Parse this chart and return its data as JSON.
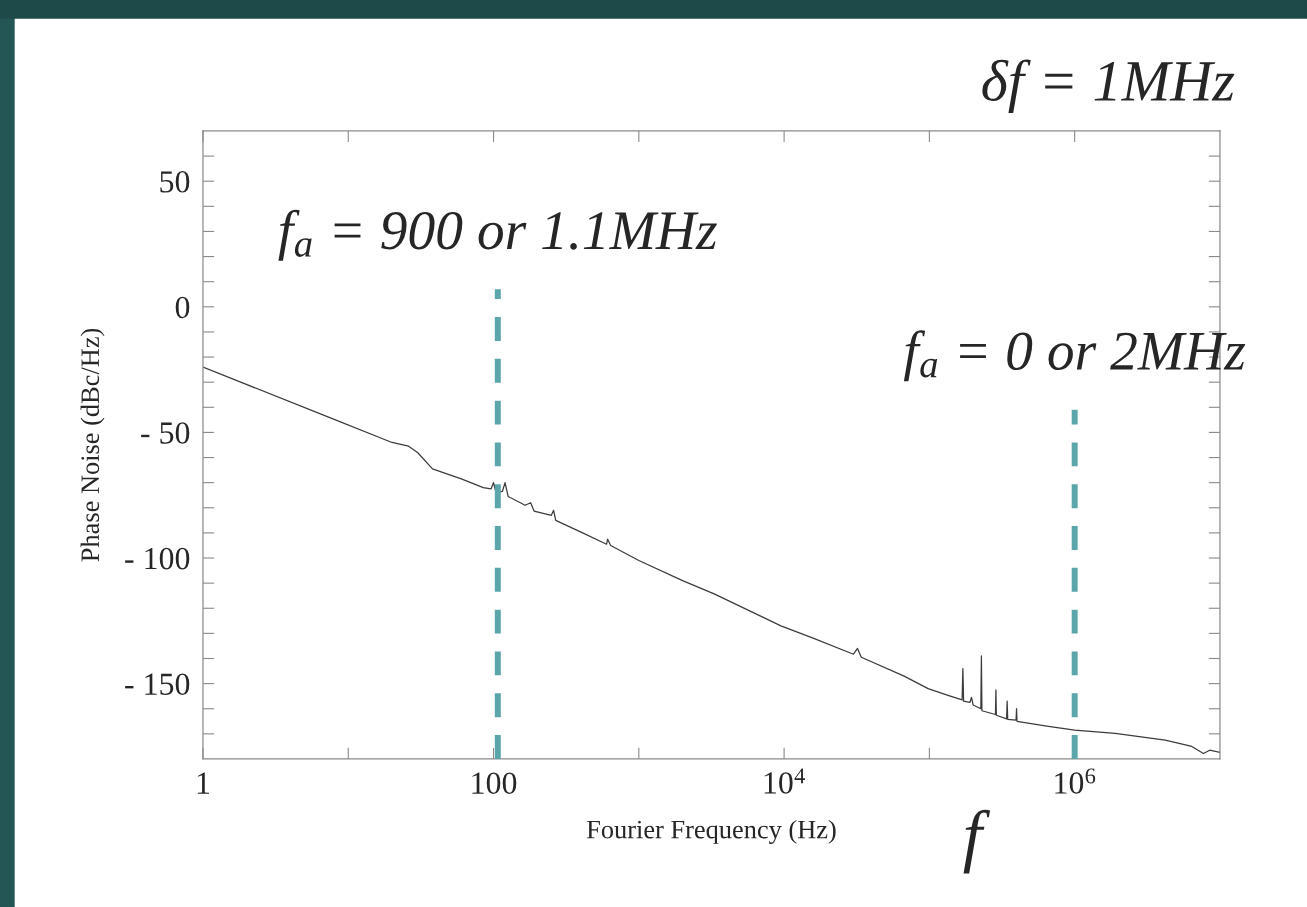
{
  "chart_data": {
    "type": "line",
    "xlabel": "Fourier Frequency (Hz)",
    "ylabel": "Phase Noise (dBc/Hz)",
    "log": "x",
    "xlim": [
      1,
      10000000
    ],
    "ylim": [
      -180,
      70
    ],
    "xticks": [
      1,
      {
        "value": 10,
        "label": null
      },
      100,
      {
        "value": 1000,
        "label": null
      },
      {
        "value": 10000,
        "label": "10$^{4}$"
      },
      {
        "value": 100000,
        "label": null
      },
      {
        "value": 1000000,
        "label": "10$^{6}$"
      }
    ],
    "yticks": [
      {
        "value": -170,
        "label": null
      },
      {
        "value": -160,
        "label": null
      },
      {
        "value": -150,
        "label": "- 150"
      },
      {
        "value": -140,
        "label": null
      },
      {
        "value": -130,
        "label": null
      },
      {
        "value": -120,
        "label": null
      },
      {
        "value": -110,
        "label": null
      },
      {
        "value": -100,
        "label": "- 100"
      },
      {
        "value": -90,
        "label": null
      },
      {
        "value": -80,
        "label": null
      },
      {
        "value": -70,
        "label": null
      },
      {
        "value": -60,
        "label": null
      },
      {
        "value": -50,
        "label": "- 50"
      },
      {
        "value": -40,
        "label": null
      },
      {
        "value": -30,
        "label": null
      },
      {
        "value": -20,
        "label": null
      },
      {
        "value": -10,
        "label": null
      },
      0,
      {
        "value": 10,
        "label": null
      },
      {
        "value": 20,
        "label": null
      },
      {
        "value": 30,
        "label": null
      },
      {
        "value": 40,
        "label": null
      },
      50,
      {
        "value": 60,
        "label": null
      }
    ],
    "annotations": [
      "δf = 1MHz",
      "f",
      {
        "text": "f$_{a}$ = 900 or 1.1MHz",
        "x": 107,
        "y": 7
      },
      {
        "text": "f$_{a}$ = 0 or 2MHz",
        "x": 1000000,
        "y": -41
      }
    ],
    "series": [
      {
        "color": "#3c3c3c",
        "x": [
          1,
          8,
          20,
          26,
          30,
          38,
          60,
          85,
          96,
          100,
          104,
          115,
          120,
          126,
          165,
          180,
          190,
          250,
          259,
          268,
          400,
          600,
          610,
          640,
          1000,
          2000,
          3300,
          9500,
          16000,
          30000,
          32000,
          34000,
          67000,
          98000,
          136000,
          168000,
          170000,
          172000,
          190000,
          195000,
          200000,
          226000,
          228000,
          230000,
          285000,
          287000,
          289000,
          340000,
          343000,
          346000,
          395000,
          398000,
          401000,
          660000,
          1000000,
          1900000,
          4200000,
          6400000,
          7700000,
          8500000,
          10000000
        ],
        "values": [
          -24,
          -44.8,
          -54,
          -55.5,
          -58,
          -64.5,
          -68.5,
          -72,
          -72.5,
          -70,
          -74,
          -73.5,
          -70,
          -75.5,
          -79,
          -78,
          -81.3,
          -83,
          -81,
          -85,
          -89.7,
          -94.5,
          -92.5,
          -95,
          -101,
          -109,
          -114.3,
          -127,
          -132,
          -138.3,
          -136,
          -139.5,
          -147,
          -152,
          -154.8,
          -156.5,
          -144,
          -157,
          -157.5,
          -155.5,
          -158.5,
          -160,
          -139,
          -160.8,
          -162.3,
          -152.5,
          -162.6,
          -164,
          -157,
          -164.2,
          -164.5,
          -160,
          -165,
          -167,
          -168.5,
          -169.8,
          -172.5,
          -175,
          -177.8,
          -176.5,
          -177.4
        ]
      },
      {
        "type": "line",
        "color": "#5ba6ab",
        "line_style": "dashed",
        "x": [
          107,
          107
        ],
        "values": [
          -180,
          7
        ]
      },
      {
        "type": "line",
        "color": "#5ba6ab",
        "line_style": "dashed",
        "x": [
          1000000,
          1000000
        ],
        "values": [
          -180,
          -41
        ]
      }
    ]
  }
}
